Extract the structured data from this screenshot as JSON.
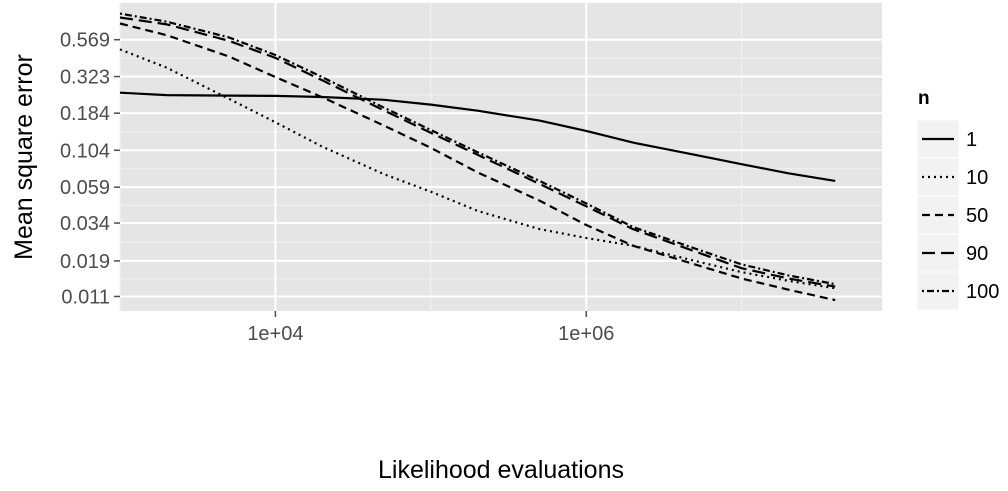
{
  "chart_data": {
    "type": "line",
    "xlabel": "Likelihood evaluations",
    "ylabel": "Mean square error",
    "x_scale": "log10",
    "y_scale": "log",
    "xlim": [
      1000,
      80000000
    ],
    "ylim": [
      0.0088,
      1.0
    ],
    "x_ticks": [
      {
        "value": 10000,
        "label": "1e+04"
      },
      {
        "value": 1000000,
        "label": "1e+06"
      }
    ],
    "y_ticks": [
      {
        "value": 0.569,
        "label": "0.569"
      },
      {
        "value": 0.323,
        "label": "0.323"
      },
      {
        "value": 0.184,
        "label": "0.184"
      },
      {
        "value": 0.104,
        "label": "0.104"
      },
      {
        "value": 0.059,
        "label": "0.059"
      },
      {
        "value": 0.034,
        "label": "0.034"
      },
      {
        "value": 0.019,
        "label": "0.019"
      },
      {
        "value": 0.011,
        "label": "0.011"
      }
    ],
    "grid": true,
    "legend": {
      "title": "n",
      "position": "right"
    },
    "series": [
      {
        "name": "1",
        "dash": "solid",
        "x": [
          1000,
          2000,
          5000,
          10000,
          20000,
          50000,
          100000,
          200000,
          500000,
          1000000,
          2000000,
          5000000,
          10000000,
          20000000,
          40000000
        ],
        "y": [
          0.252,
          0.243,
          0.241,
          0.24,
          0.236,
          0.226,
          0.21,
          0.191,
          0.164,
          0.14,
          0.117,
          0.097,
          0.084,
          0.073,
          0.065
        ]
      },
      {
        "name": "10",
        "dash": "dotted",
        "x": [
          1000,
          2000,
          5000,
          10000,
          20000,
          50000,
          100000,
          200000,
          500000,
          1000000,
          2000000,
          5000000,
          10000000,
          20000000,
          40000000
        ],
        "y": [
          0.49,
          0.37,
          0.23,
          0.16,
          0.11,
          0.072,
          0.055,
          0.041,
          0.031,
          0.027,
          0.024,
          0.019,
          0.016,
          0.014,
          0.0125
        ]
      },
      {
        "name": "50",
        "dash": "dashed",
        "x": [
          1000,
          2000,
          5000,
          10000,
          20000,
          50000,
          100000,
          200000,
          500000,
          1000000,
          2000000,
          5000000,
          10000000,
          20000000,
          40000000
        ],
        "y": [
          0.73,
          0.61,
          0.44,
          0.32,
          0.235,
          0.152,
          0.108,
          0.074,
          0.048,
          0.033,
          0.024,
          0.018,
          0.0145,
          0.0122,
          0.0104
        ]
      },
      {
        "name": "90",
        "dash": "longdash",
        "x": [
          1000,
          2000,
          5000,
          10000,
          20000,
          50000,
          100000,
          200000,
          500000,
          1000000,
          2000000,
          5000000,
          10000000,
          20000000,
          40000000
        ],
        "y": [
          0.8,
          0.72,
          0.56,
          0.43,
          0.305,
          0.192,
          0.136,
          0.097,
          0.062,
          0.044,
          0.031,
          0.022,
          0.017,
          0.0145,
          0.0128
        ]
      },
      {
        "name": "100",
        "dash": "dotdash",
        "x": [
          1000,
          2000,
          5000,
          10000,
          20000,
          50000,
          100000,
          200000,
          500000,
          1000000,
          2000000,
          5000000,
          10000000,
          20000000,
          40000000
        ],
        "y": [
          0.85,
          0.75,
          0.59,
          0.45,
          0.32,
          0.2,
          0.142,
          0.101,
          0.065,
          0.046,
          0.032,
          0.023,
          0.018,
          0.0152,
          0.0133
        ]
      }
    ]
  }
}
